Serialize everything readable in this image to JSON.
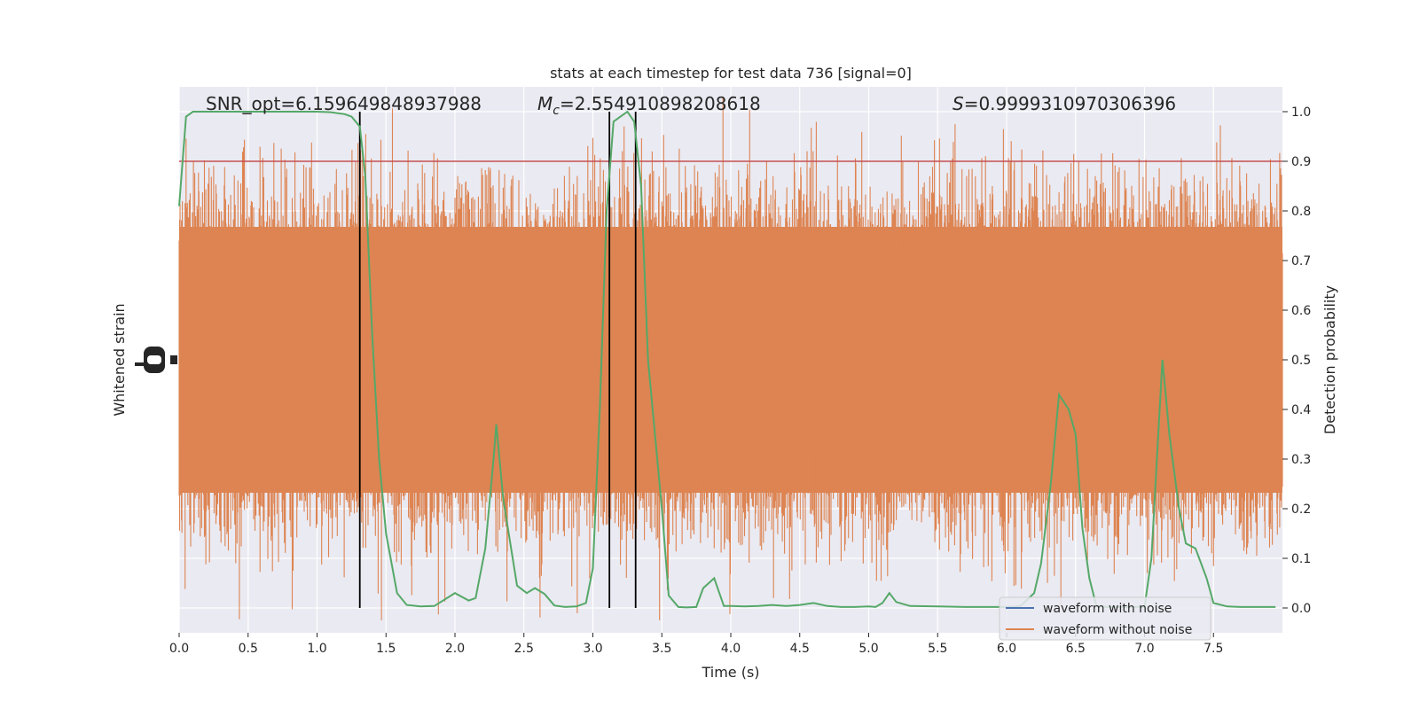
{
  "chart_data": {
    "type": "line",
    "title": "stats at each timestep for test data 736 [signal=0]",
    "xlabel": "Time (s)",
    "ylabel_left": "Whitened strain",
    "ylabel_right": "Detection probability",
    "xlim": [
      0,
      8
    ],
    "ylim_right": [
      -0.05,
      1.05
    ],
    "x_ticks": [
      "0.0",
      "0.5",
      "1.0",
      "1.5",
      "2.0",
      "2.5",
      "3.0",
      "3.5",
      "4.0",
      "4.5",
      "5.0",
      "5.5",
      "6.0",
      "6.5",
      "7.0",
      "7.5"
    ],
    "x_tick_values": [
      0,
      0.5,
      1,
      1.5,
      2,
      2.5,
      3,
      3.5,
      4,
      4.5,
      5,
      5.5,
      6,
      6.5,
      7,
      7.5
    ],
    "y_right_ticks": [
      "0.0",
      "0.1",
      "0.2",
      "0.3",
      "0.4",
      "0.5",
      "0.6",
      "0.7",
      "0.8",
      "0.9",
      "1.0"
    ],
    "y_right_tick_values": [
      0,
      0.1,
      0.2,
      0.3,
      0.4,
      0.5,
      0.6,
      0.7,
      0.8,
      0.9,
      1.0
    ],
    "annotations": {
      "snr_text": "SNR_opt=6.159649848937988",
      "mc_symbol": "M",
      "mc_subscript": "c",
      "mc_value": "=2.554910898208618",
      "s_symbol": "S",
      "s_value": "=0.9999310970306396"
    },
    "threshold": {
      "value": 0.9,
      "color": "#c44e52"
    },
    "vertical_lines": [
      1.31,
      3.12,
      3.31
    ],
    "legend": {
      "position": "lower-right",
      "entries": [
        {
          "label": "waveform with noise",
          "color": "#4c72b0"
        },
        {
          "label": "waveform without noise",
          "color": "#dd8452"
        }
      ]
    },
    "series": [
      {
        "name": "waveform with noise",
        "color": "#4c72b0"
      },
      {
        "name": "waveform without noise",
        "color": "#dd8452"
      },
      {
        "color": "#55a868",
        "x": [
          0,
          0.05,
          0.1,
          0.2,
          0.3,
          0.5,
          0.7,
          0.9,
          1.0,
          1.1,
          1.2,
          1.25,
          1.31,
          1.35,
          1.4,
          1.45,
          1.5,
          1.58,
          1.65,
          1.75,
          1.85,
          2.0,
          2.1,
          2.15,
          2.22,
          2.28,
          2.3,
          2.35,
          2.45,
          2.52,
          2.58,
          2.65,
          2.72,
          2.8,
          2.88,
          2.95,
          3.0,
          3.05,
          3.1,
          3.15,
          3.2,
          3.25,
          3.3,
          3.35,
          3.4,
          3.5,
          3.55,
          3.62,
          3.68,
          3.75,
          3.8,
          3.88,
          3.95,
          4.0,
          4.1,
          4.2,
          4.3,
          4.4,
          4.5,
          4.55,
          4.6,
          4.7,
          4.8,
          4.9,
          5.0,
          5.05,
          5.1,
          5.15,
          5.2,
          5.3,
          5.5,
          5.7,
          6.0,
          6.1,
          6.2,
          6.25,
          6.32,
          6.38,
          6.45,
          6.5,
          6.55,
          6.6,
          6.65,
          6.72,
          6.8,
          6.9,
          7.0,
          7.05,
          7.1,
          7.13,
          7.18,
          7.25,
          7.3,
          7.37,
          7.45,
          7.5,
          7.6,
          7.7,
          7.95
        ],
        "y": [
          0.81,
          0.99,
          1.0,
          1.0,
          1.0,
          1.0,
          1.0,
          1.0,
          1.0,
          0.999,
          0.995,
          0.99,
          0.97,
          0.87,
          0.55,
          0.3,
          0.15,
          0.03,
          0.006,
          0.003,
          0.004,
          0.03,
          0.015,
          0.02,
          0.12,
          0.3,
          0.37,
          0.22,
          0.045,
          0.03,
          0.04,
          0.028,
          0.005,
          0.002,
          0.003,
          0.01,
          0.08,
          0.4,
          0.8,
          0.98,
          0.99,
          1.0,
          0.98,
          0.85,
          0.5,
          0.2,
          0.025,
          0.002,
          0.001,
          0.002,
          0.04,
          0.06,
          0.004,
          0.004,
          0.003,
          0.004,
          0.006,
          0.004,
          0.006,
          0.008,
          0.01,
          0.004,
          0.002,
          0.002,
          0.003,
          0.002,
          0.01,
          0.03,
          0.012,
          0.004,
          0.003,
          0.002,
          0.002,
          0.004,
          0.03,
          0.09,
          0.25,
          0.43,
          0.4,
          0.35,
          0.16,
          0.06,
          0.005,
          0.002,
          0.002,
          0.002,
          0.002,
          0.1,
          0.35,
          0.5,
          0.35,
          0.2,
          0.13,
          0.12,
          0.06,
          0.01,
          0.003,
          0.002,
          0.002
        ]
      }
    ]
  }
}
